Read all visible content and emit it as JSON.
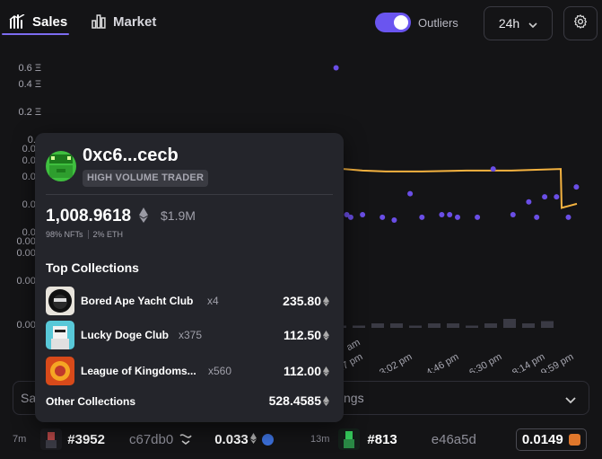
{
  "tabs": [
    {
      "label": "Sales",
      "icon": "sales-chart-icon",
      "active": true
    },
    {
      "label": "Market",
      "icon": "bar-chart-icon",
      "active": false
    }
  ],
  "outliers": {
    "label": "Outliers",
    "enabled": true
  },
  "range": {
    "value": "24h"
  },
  "accent_color": "#6a55f0",
  "chart_data": {
    "type": "scatter",
    "y_scale": "log",
    "y_ticks": [
      "0.6 Ξ",
      "0.4 Ξ",
      "0.2 Ξ",
      "0.1",
      "0.08",
      "0.06",
      "0.04",
      "0.02",
      "0.01",
      "0.008",
      "0.006",
      "0.003",
      "0.001"
    ],
    "x_ticks": [
      "...",
      "1:17 pm",
      "3:02 pm",
      "4:46 pm",
      "6:30 pm",
      "8:14 pm",
      "9:59 pm"
    ],
    "points": [
      {
        "x": "11:33 am",
        "y": 0.62
      },
      {
        "x": "12:00 pm",
        "y": 0.016
      },
      {
        "x": "12:10 pm",
        "y": 0.015
      },
      {
        "x": "12:40 pm",
        "y": 0.016
      },
      {
        "x": "1:30 pm",
        "y": 0.015
      },
      {
        "x": "2:00 pm",
        "y": 0.014
      },
      {
        "x": "2:40 pm",
        "y": 0.027
      },
      {
        "x": "3:10 pm",
        "y": 0.015
      },
      {
        "x": "4:00 pm",
        "y": 0.016
      },
      {
        "x": "4:20 pm",
        "y": 0.016
      },
      {
        "x": "4:40 pm",
        "y": 0.015
      },
      {
        "x": "5:30 pm",
        "y": 0.015
      },
      {
        "x": "6:10 pm",
        "y": 0.05
      },
      {
        "x": "7:00 pm",
        "y": 0.016
      },
      {
        "x": "7:40 pm",
        "y": 0.022
      },
      {
        "x": "8:00 pm",
        "y": 0.015
      },
      {
        "x": "8:20 pm",
        "y": 0.025
      },
      {
        "x": "8:50 pm",
        "y": 0.025
      },
      {
        "x": "9:20 pm",
        "y": 0.015
      },
      {
        "x": "9:40 pm",
        "y": 0.032
      }
    ],
    "series": [
      {
        "values": [
          0.05,
          0.048,
          0.047,
          0.047,
          0.048,
          0.048,
          0.05,
          0.019,
          0.021
        ],
        "color": "#f5b340"
      }
    ],
    "point_color": "#6a4ee6",
    "volume_bars": [
      1,
      1,
      2,
      2,
      1,
      2,
      2,
      1,
      2,
      4,
      2,
      3
    ]
  },
  "filter": {
    "left_text": "Sa",
    "right_text": "ngs"
  },
  "sales": [
    {
      "time": "7m",
      "token": "#3952",
      "buyer": "c67db0",
      "price": "0.033"
    },
    {
      "time": "13m",
      "token": "#813",
      "buyer": "e46a5d",
      "price": "0.0149"
    }
  ],
  "profile": {
    "wallet": "0xc6...cecb",
    "badge": "HIGH VOLUME TRADER",
    "volume": "1,008.9618",
    "volume_usd": "$1.9M",
    "nft_share": "98% NFTs",
    "eth_share": "2%  ETH",
    "top_title": "Top Collections",
    "collections": [
      {
        "name": "Bored Ape Yacht Club",
        "count": "x4",
        "volume": "235.80"
      },
      {
        "name": "Lucky Doge Club",
        "count": "x375",
        "volume": "112.50"
      },
      {
        "name": "League of Kingdoms...",
        "count": "x560",
        "volume": "112.00"
      }
    ],
    "other_label": "Other Collections",
    "other_volume": "528.4585"
  }
}
